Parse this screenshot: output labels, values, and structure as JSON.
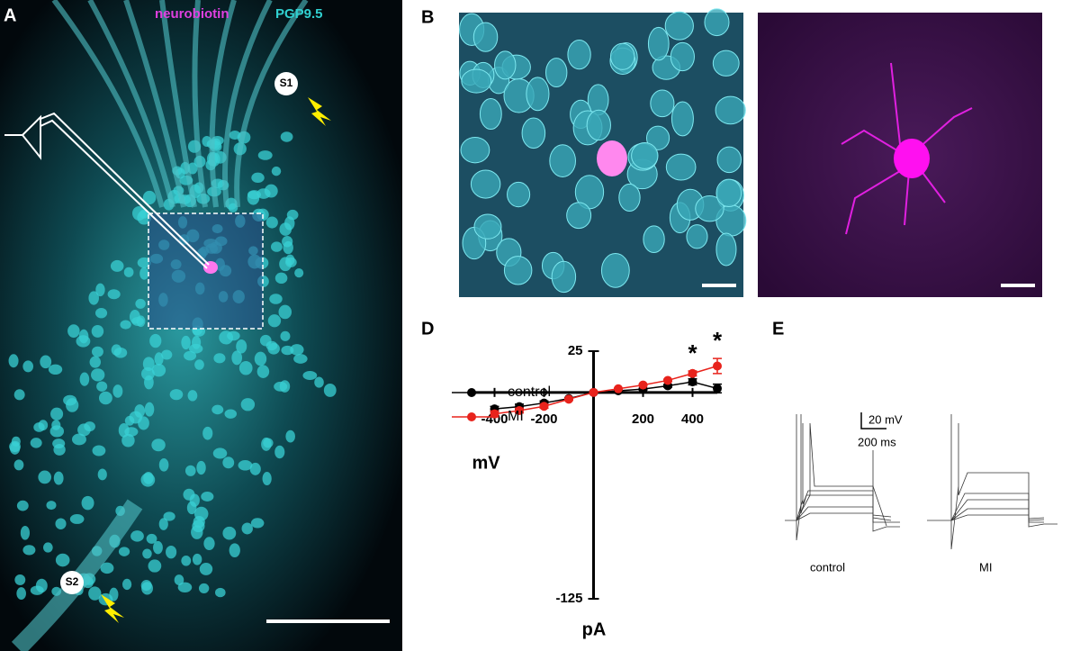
{
  "panels": {
    "a": "A",
    "b": "B",
    "d": "D",
    "e": "E"
  },
  "image_a": {
    "stain1": "neurobiotin",
    "stain2": "PGP9.5",
    "stim1": "S1",
    "stim2": "S2"
  },
  "panel_e": {
    "scale_v": "20 mV",
    "scale_t": "200 ms",
    "label_control": "control",
    "label_mi": "MI"
  },
  "chart_data": {
    "type": "line",
    "xlabel": "pA",
    "ylabel": "mV",
    "x": [
      -400,
      -300,
      -200,
      -100,
      0,
      100,
      200,
      300,
      400,
      500
    ],
    "xlim": [
      -500,
      500
    ],
    "xticks": [
      -400,
      -200,
      200,
      400
    ],
    "ylim": [
      -125,
      25
    ],
    "yticks": [
      25,
      -125
    ],
    "legend": "upper left",
    "series": [
      {
        "name": "control",
        "color": "#000000",
        "values": [
          -10,
          -8.6,
          -6.4,
          -3.7,
          0,
          1,
          2,
          4,
          6.4,
          2.4
        ],
        "errors": [
          1.5,
          1.5,
          1.2,
          0.5,
          0,
          0.3,
          0.5,
          0.8,
          1.8,
          2.6
        ]
      },
      {
        "name": "MI",
        "color": "#e8231c",
        "values": [
          -13,
          -11,
          -8.4,
          -4.1,
          0,
          2.2,
          4.5,
          7.3,
          11.5,
          16
        ],
        "errors": [
          1.8,
          1.4,
          1.2,
          0.5,
          0,
          0.4,
          0.5,
          0.6,
          1.5,
          4.6
        ]
      }
    ],
    "annotations": [
      "*",
      "*"
    ]
  }
}
